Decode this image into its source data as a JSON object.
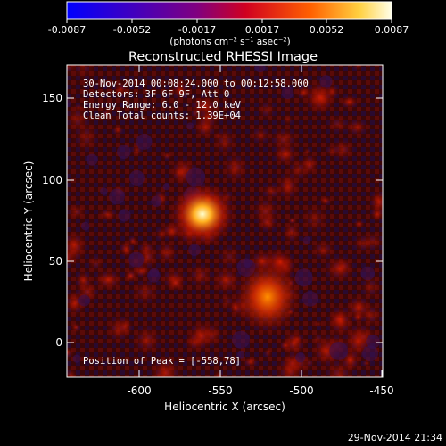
{
  "figure": {
    "title": "Reconstructed RHESSI Image",
    "timestamp": "29-Nov-2014 21:34"
  },
  "colorbar": {
    "ticks": [
      "-0.0087",
      "-0.0052",
      "-0.0017",
      "0.0017",
      "0.0052",
      "0.0087"
    ],
    "unit_label": "(photons cm⁻² s⁻¹ asec⁻²)"
  },
  "annotations": {
    "time_range": "30-Nov-2014 00:08:24.000 to 00:12:58.000",
    "detectors": "Detectors: 3F 6F 9F, Att 0",
    "energy_range": "Energy Range: 6.0 - 12.0 keV",
    "clean": "Clean     Total counts: 1.39E+04",
    "peak": "Position of Peak = [-558,78]"
  },
  "axes": {
    "x_label": "Heliocentric X (arcsec)",
    "y_label": "Heliocentric Y (arcsec)",
    "x_ticks": [
      "-600",
      "-550",
      "-500",
      "-450"
    ],
    "y_ticks": [
      "0",
      "50",
      "100",
      "150"
    ]
  },
  "sources": [
    {
      "x": -558,
      "y": 78,
      "relative_intensity": 1.0
    },
    {
      "x": -515,
      "y": 25,
      "relative_intensity": 0.7
    }
  ]
}
